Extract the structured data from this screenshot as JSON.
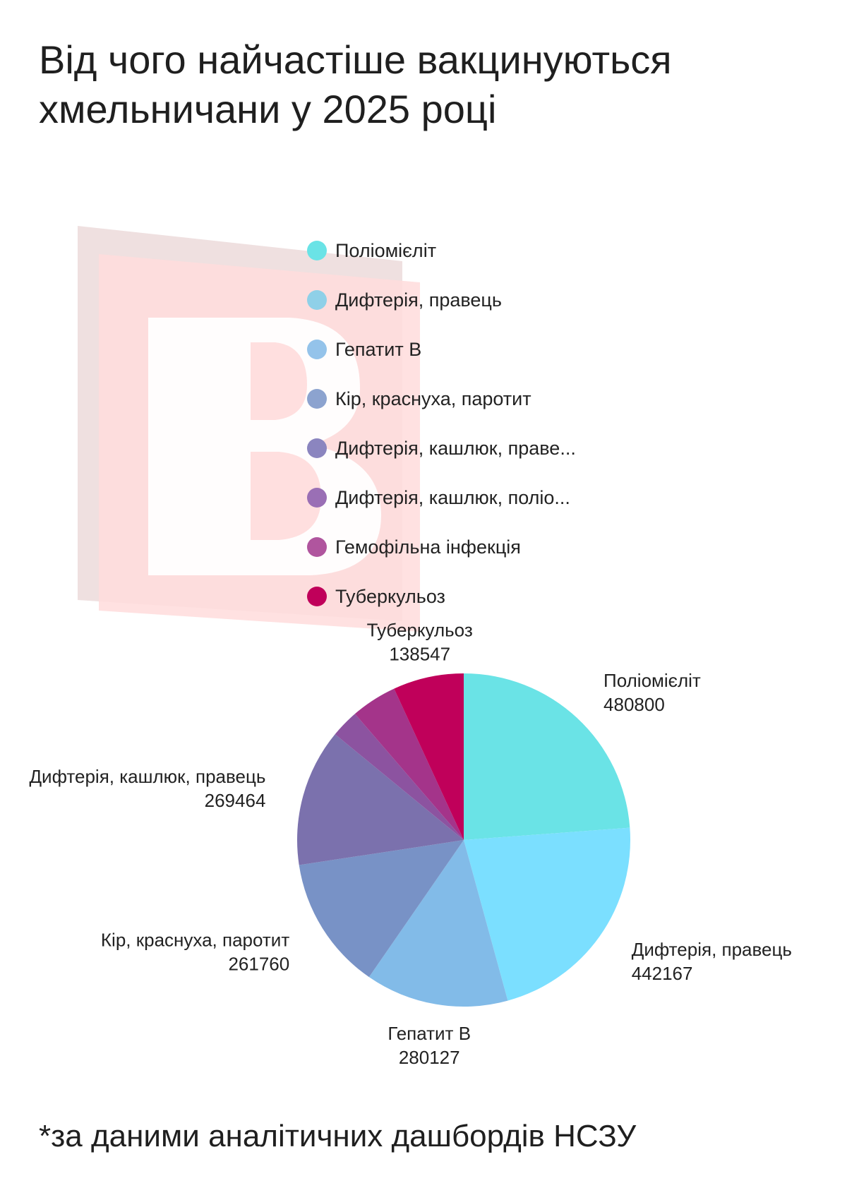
{
  "title_line1": "Від чого найчастіше вакцинуються",
  "title_line2": "хмельничани у 2025 році",
  "footnote": "*за даними аналітичних дашбордів НСЗУ",
  "legend": [
    {
      "label": "Поліомієліт",
      "color": "#6ae3e6"
    },
    {
      "label": "Дифтерія, правець",
      "color": "#8fd0e8"
    },
    {
      "label": "Гепатит B",
      "color": "#94c3ea"
    },
    {
      "label": "Кір, краснуха, паротит",
      "color": "#8ca3cf"
    },
    {
      "label": "Дифтерія, кашлюк, праве...",
      "color": "#8b85bf"
    },
    {
      "label": "Дифтерія, кашлюк, поліо...",
      "color": "#9a6fb5"
    },
    {
      "label": "Гемофільна інфекція",
      "color": "#b0559e"
    },
    {
      "label": "Туберкульоз",
      "color": "#c0005a"
    }
  ],
  "chart_data": {
    "type": "pie",
    "start_angle_deg": 0,
    "direction": "clockwise",
    "slices": [
      {
        "label": "Поліомієліт",
        "value": 480800,
        "color": "#6ae3e6",
        "show_label": true
      },
      {
        "label": "Дифтерія, правець",
        "value": 442167,
        "color": "#7bdfff",
        "show_label": true
      },
      {
        "label": "Гепатит B",
        "value": 280127,
        "color": "#82bbe8",
        "show_label": true
      },
      {
        "label": "Кір, краснуха, паротит",
        "value": 261760,
        "color": "#7892c6",
        "show_label": true
      },
      {
        "label": "Дифтерія, кашлюк, правець",
        "value": 269464,
        "color": "#7b71ad",
        "show_label": true
      },
      {
        "label": "Дифтерія, кашлюк, поліомієліт",
        "value": 55000,
        "color": "#8c53a0",
        "show_label": false
      },
      {
        "label": "Гемофільна інфекція",
        "value": 90000,
        "color": "#a4348a",
        "show_label": false
      },
      {
        "label": "Туберкульоз",
        "value": 138547,
        "color": "#c0005a",
        "show_label": true
      }
    ]
  }
}
